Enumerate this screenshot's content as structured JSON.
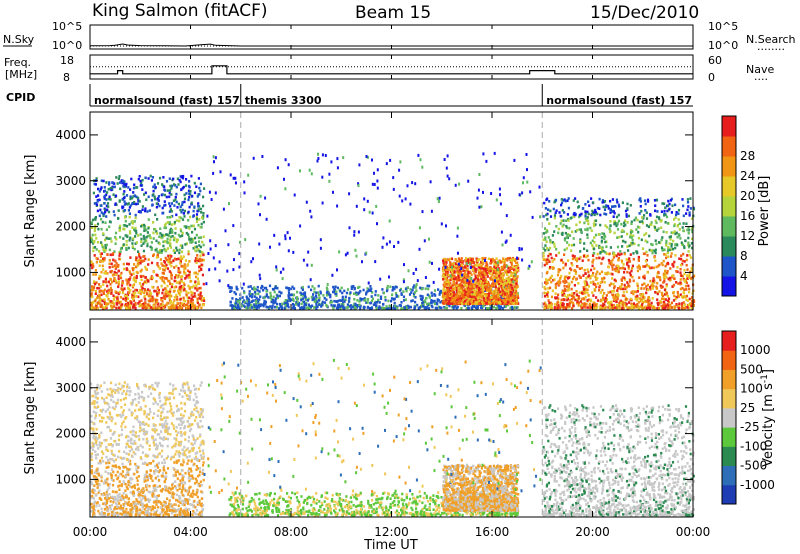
{
  "chart_data": [
    {
      "type": "line",
      "panel": "N.Sky / N.Search",
      "left_label": "N.Sky",
      "right_label": "N.Search",
      "yticks_left": [
        "10^5",
        "10^0"
      ],
      "yticks_right": [
        "10^5",
        "10^0"
      ],
      "series": [
        {
          "name": "N.Sky",
          "x_hours": [
            0,
            0.8,
            1.0,
            1.3,
            1.5,
            2.0,
            3.0,
            3.8,
            4.4,
            4.8,
            5.0,
            6.0,
            8.0,
            10.0,
            12.0,
            14.0,
            16.0,
            18.0,
            20.0,
            22.0,
            24.0
          ],
          "values": [
            1.2,
            1.5,
            2.0,
            8.0,
            3.0,
            1.5,
            1.2,
            1.0,
            4.0,
            7.0,
            2.0,
            1.0,
            1.0,
            1.0,
            1.0,
            1.0,
            1.0,
            1.0,
            1.0,
            1.0,
            1.0
          ]
        }
      ]
    },
    {
      "type": "line",
      "panel": "Freq. [MHz] / Nave",
      "left_label": "Freq.",
      "left_unit": "[MHz]",
      "right_label": "Nave",
      "yticks_left": [
        "18",
        "8"
      ],
      "yticks_right": [
        "60",
        "0"
      ],
      "series": [
        {
          "name": "Freq.",
          "x_hours": [
            0,
            1.1,
            1.1,
            1.3,
            1.3,
            4.85,
            4.85,
            5.45,
            5.45,
            17.5,
            17.5,
            18.5,
            18.5,
            24
          ],
          "values": [
            10,
            10,
            12,
            12,
            10,
            10,
            15,
            15,
            10,
            10,
            12,
            12,
            10,
            10
          ]
        },
        {
          "name": "Nave",
          "x_hours": [
            0,
            24
          ],
          "values": [
            34,
            34
          ]
        }
      ]
    },
    {
      "type": "table",
      "panel": "CPID",
      "label": "CPID",
      "segments": [
        {
          "start_h": 0.0,
          "end_h": 6.0,
          "name": "normalsound (fast) 157"
        },
        {
          "start_h": 6.0,
          "end_h": 18.0,
          "name": "themis 3300"
        },
        {
          "start_h": 18.0,
          "end_h": 24.0,
          "name": "normalsound (fast) 157"
        }
      ]
    },
    {
      "type": "heatmap",
      "panel": "Power",
      "ylabel": "Slant Range [km]",
      "yticks": [
        1000,
        2000,
        3000,
        4000
      ],
      "ylim": [
        180,
        4500
      ],
      "xlim_hours": [
        0,
        24
      ],
      "colorbar_label": "Power [dB]",
      "colorbar_ticks": [
        4,
        8,
        12,
        16,
        20,
        24,
        28
      ],
      "colorbar_colors": [
        "#1414e6",
        "#1e55c8",
        "#2b8a5c",
        "#5fb95f",
        "#b5d33a",
        "#e6c828",
        "#f09614",
        "#f06414",
        "#e61e1e"
      ],
      "regions": [
        {
          "t0": 0.0,
          "t1": 4.5,
          "r0": 200,
          "r1": 3100,
          "level": "mixed"
        },
        {
          "t0": 5.5,
          "t1": 17.0,
          "r0": 200,
          "r1": 700,
          "level": "low"
        },
        {
          "t0": 14.0,
          "t1": 17.0,
          "r0": 300,
          "r1": 1300,
          "level": "mixed"
        },
        {
          "t0": 18.0,
          "t1": 24.0,
          "r0": 200,
          "r1": 2600,
          "level": "mixed"
        }
      ]
    },
    {
      "type": "heatmap",
      "panel": "Velocity",
      "ylabel": "Slant Range [km]",
      "yticks": [
        1000,
        2000,
        3000,
        4000
      ],
      "ylim": [
        180,
        4500
      ],
      "xlim_hours": [
        0,
        24
      ],
      "colorbar_label": "Velocity [m s",
      "colorbar_exponent": "-1",
      "colorbar_ticks": [
        1000,
        500,
        100,
        25,
        -25,
        -100,
        -500,
        -1000
      ],
      "colorbar_colors": [
        "#1e3cb4",
        "#2e6eb8",
        "#2a8a50",
        "#5cc83c",
        "#c8c8c8",
        "#f0c85a",
        "#f0a028",
        "#f06414",
        "#e61e1e"
      ],
      "regions": [
        {
          "t0": 0.0,
          "t1": 4.5,
          "r0": 200,
          "r1": 3100,
          "level": "mixed"
        },
        {
          "t0": 5.5,
          "t1": 17.0,
          "r0": 200,
          "r1": 700,
          "level": "low"
        },
        {
          "t0": 14.0,
          "t1": 17.0,
          "r0": 300,
          "r1": 1300,
          "level": "mixed"
        },
        {
          "t0": 18.0,
          "t1": 24.0,
          "r0": 200,
          "r1": 2600,
          "level": "mixed"
        }
      ]
    }
  ],
  "title_left": "King Salmon (fitACF)",
  "title_center": "Beam 15",
  "title_right": "15/Dec/2010",
  "xtick_labels": [
    "00:00",
    "04:00",
    "08:00",
    "12:00",
    "16:00",
    "20:00",
    "00:00"
  ],
  "xlabel": "Time UT",
  "nsky_dots": "........",
  "nave_dots": "....",
  "cb_power_title": "Power [dB]",
  "cb_vel_title": "Velocity [m s",
  "cb_vel_sup": "-1",
  "cb_vel_close": "]"
}
